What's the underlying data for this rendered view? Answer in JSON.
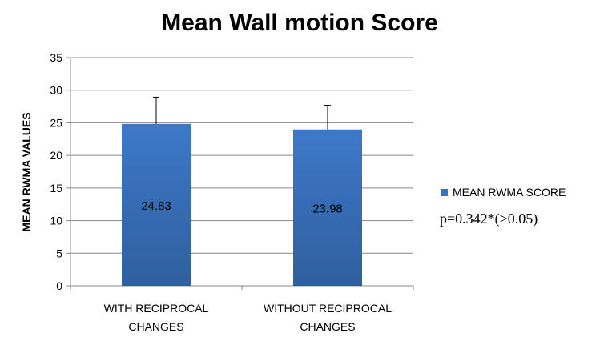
{
  "chart_data": {
    "type": "bar",
    "title": "Mean Wall motion Score",
    "ylabel": "MEAN RWMA VALUES",
    "xlabel": "",
    "categories": [
      [
        "WITH RECIPROCAL",
        "CHANGES"
      ],
      [
        "WITHOUT RECIPROCAL",
        "CHANGES"
      ]
    ],
    "series": [
      {
        "name": "MEAN RWMA SCORE",
        "values": [
          24.83,
          23.98
        ],
        "error_plus": [
          4.1,
          3.7
        ],
        "data_labels": [
          "24.83",
          "23.98"
        ],
        "color": "#3a72c2"
      }
    ],
    "ylim": [
      0,
      35
    ],
    "yticks": [
      0,
      5,
      10,
      15,
      20,
      25,
      30,
      35
    ],
    "grid": true,
    "legend": "right",
    "annotation": "p=0.342*(>0.05)"
  }
}
